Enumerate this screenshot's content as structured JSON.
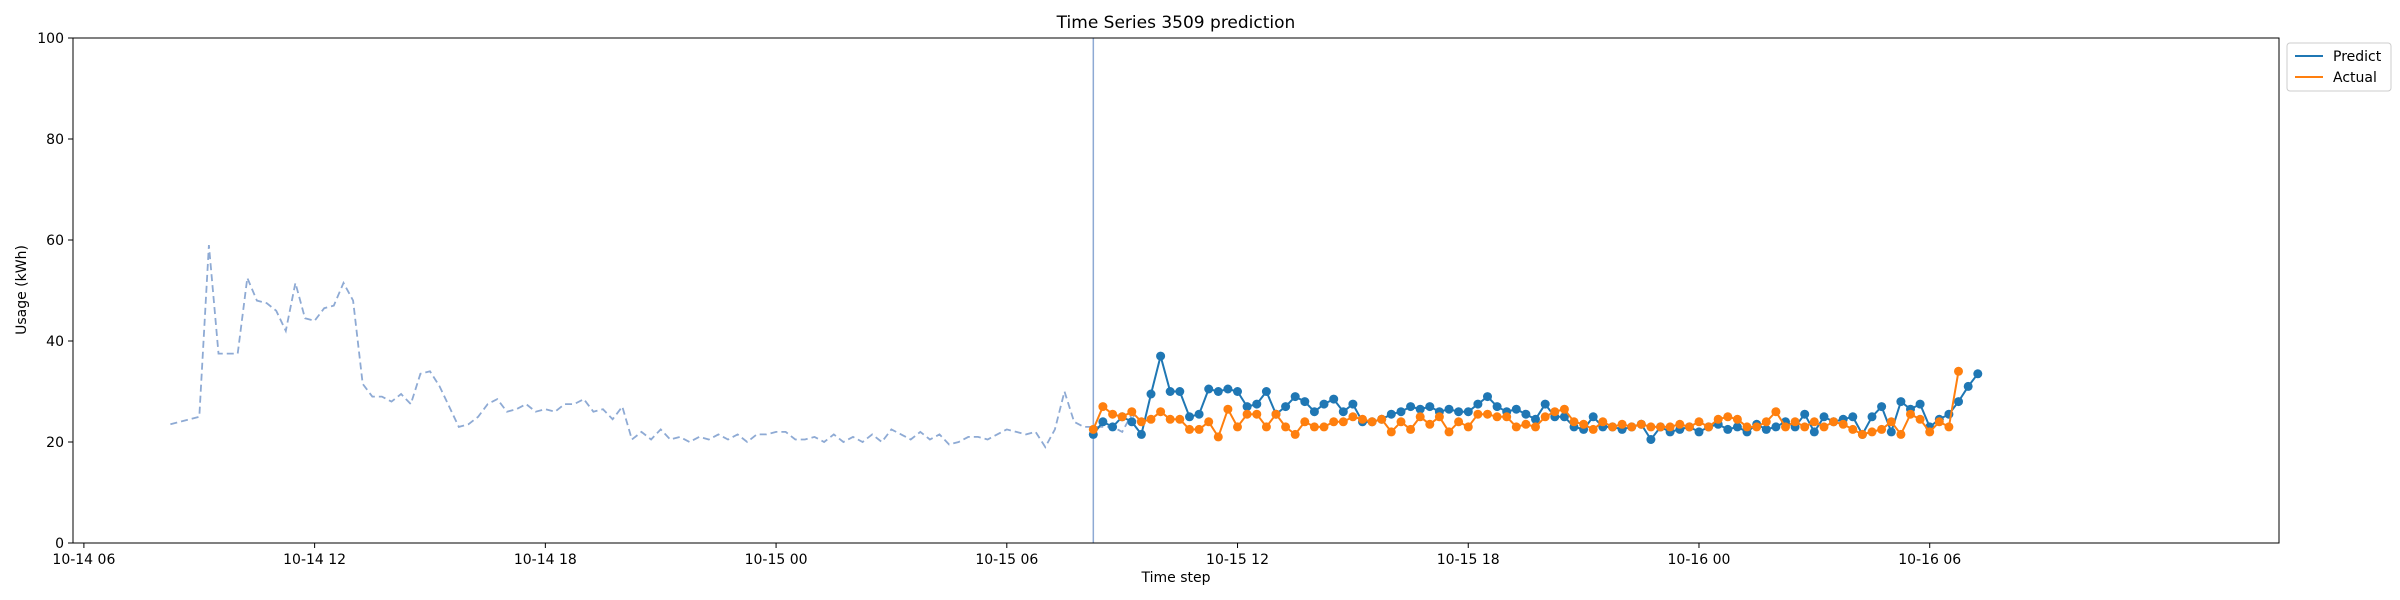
{
  "chart_data": {
    "type": "line",
    "title": "Time Series 3509 prediction",
    "xlabel": "Time step",
    "ylabel": "Usage (kWh)",
    "ylim": [
      0,
      100
    ],
    "xlim": [
      "2000-10-14 05:43",
      "2000-10-16 15:05"
    ],
    "grid": false,
    "legend_position": "top-right, outside the plot",
    "y_ticks": [
      0,
      20,
      40,
      60,
      80,
      100
    ],
    "x_ticks": [
      {
        "t": "2000-10-14 06:00",
        "label": "10-14 06"
      },
      {
        "t": "2000-10-14 12:00",
        "label": "10-14 12"
      },
      {
        "t": "2000-10-14 18:00",
        "label": "10-14 18"
      },
      {
        "t": "2000-10-15 00:00",
        "label": "10-15 00"
      },
      {
        "t": "2000-10-15 06:00",
        "label": "10-15 06"
      },
      {
        "t": "2000-10-15 12:00",
        "label": "10-15 12"
      },
      {
        "t": "2000-10-15 18:00",
        "label": "10-15 18"
      },
      {
        "t": "2000-10-16 00:00",
        "label": "10-16 00"
      },
      {
        "t": "2000-10-16 06:00",
        "label": "10-16 06"
      }
    ],
    "forecast_start": "2000-10-15 08:15",
    "colors": {
      "history": "#8eaad4",
      "predict": "#1f77b4",
      "actual": "#ff7f0e",
      "divider": "#8eaad4"
    },
    "history": {
      "start": "2000-10-14 08:15",
      "step_minutes": 15,
      "values": [
        23.5,
        24,
        24.5,
        25,
        59,
        37.5,
        37.5,
        37.5,
        52.5,
        48,
        47.5,
        46,
        42,
        51.5,
        44.5,
        44,
        46.5,
        47,
        51.5,
        48,
        31.5,
        29,
        29,
        28,
        29.5,
        27.5,
        33.5,
        34,
        31,
        27,
        23,
        23.5,
        25,
        27.5,
        28.5,
        26,
        26.5,
        27.5,
        26,
        26.5,
        26,
        27.5,
        27.5,
        28.5,
        26,
        26.5,
        24.5,
        27,
        20.5,
        22,
        20.5,
        22.5,
        20.5,
        21,
        20,
        21,
        20.5,
        21.5,
        20.5,
        21.5,
        20,
        21.5,
        21.5,
        22,
        22,
        20.5,
        20.5,
        21,
        20,
        21.5,
        20,
        21,
        20,
        21.5,
        20,
        22.5,
        21.5,
        20.5,
        22,
        20.5,
        21.5,
        19.5,
        20,
        21,
        21,
        20.5,
        21.5,
        22.5,
        22,
        21.5,
        22,
        19,
        22.5,
        30,
        24,
        23,
        23,
        23,
        23,
        22,
        25.5,
        23.5
      ]
    },
    "forecast": {
      "start": "2000-10-15 08:15",
      "step_minutes": 15,
      "series": [
        {
          "name": "Predict",
          "values": [
            21.5,
            24,
            23,
            25,
            24,
            21.5,
            29.5,
            37,
            30,
            30,
            25,
            25.5,
            30.5,
            30,
            30.5,
            30,
            27,
            27.5,
            30,
            25.5,
            27,
            29,
            28,
            26,
            27.5,
            28.5,
            26,
            27.5,
            24,
            24,
            24.5,
            25.5,
            26,
            27,
            26.5,
            27,
            26,
            26.5,
            26,
            26,
            27.5,
            29,
            27,
            26,
            26.5,
            25.5,
            24.5,
            27.5,
            25,
            25,
            23,
            22.5,
            25,
            23,
            23,
            22.5,
            23,
            23.5,
            20.5,
            23,
            22,
            22.5,
            23,
            22,
            23,
            23.5,
            22.5,
            23,
            22,
            23.5,
            22.5,
            23,
            24,
            23,
            25.5,
            22,
            25,
            24,
            24.5,
            25,
            21.5,
            25,
            27,
            22,
            28,
            26.5,
            27.5,
            23,
            24.5,
            25.5,
            28,
            31,
            33.5
          ]
        },
        {
          "name": "Actual",
          "values": [
            22.5,
            27,
            25.5,
            25,
            26,
            24,
            24.5,
            26,
            24.5,
            24.5,
            22.5,
            22.5,
            24,
            21,
            26.5,
            23,
            25.5,
            25.5,
            23,
            25.5,
            23,
            21.5,
            24,
            23,
            23,
            24,
            24,
            25,
            24.5,
            24,
            24.5,
            22,
            24,
            22.5,
            25,
            23.5,
            25,
            22,
            24,
            23,
            25.5,
            25.5,
            25,
            25,
            23,
            23.5,
            23,
            25,
            26,
            26.5,
            24,
            23.5,
            22.5,
            24,
            23,
            23.5,
            23,
            23.5,
            23,
            23,
            23,
            23.5,
            23,
            24,
            23,
            24.5,
            25,
            24.5,
            23,
            23,
            24,
            26,
            23,
            24,
            23,
            24,
            23,
            24,
            23.5,
            22.5,
            21.5,
            22,
            22.5,
            24,
            21.5,
            25.5,
            24.5,
            22,
            24,
            23,
            34
          ]
        }
      ]
    }
  }
}
